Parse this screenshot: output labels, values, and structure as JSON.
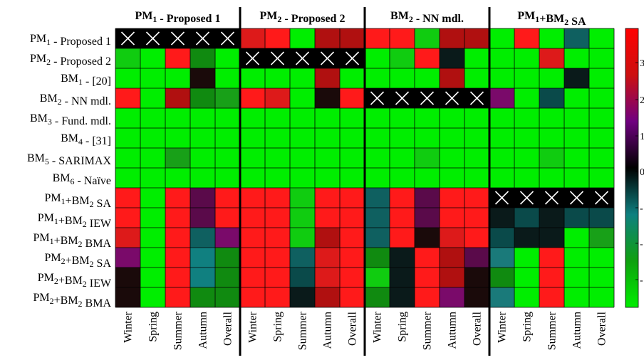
{
  "chart_data": {
    "type": "heatmap",
    "column_groups": [
      {
        "main": "PM",
        "sub": "1",
        "rest": " - Proposed 1"
      },
      {
        "main": "PM",
        "sub": "2",
        "rest": " - Proposed 2"
      },
      {
        "main": "BM",
        "sub": "2",
        "rest": " - NN mdl."
      },
      {
        "parts": [
          {
            "t": "PM",
            "sub": false
          },
          {
            "t": "1",
            "sub": true
          },
          {
            "t": "+BM",
            "sub": false
          },
          {
            "t": "2",
            "sub": true
          },
          {
            "t": " SA",
            "sub": false
          }
        ]
      }
    ],
    "columns": [
      "Winter",
      "Spring",
      "Summer",
      "Autumn",
      "Overall"
    ],
    "rows": [
      {
        "parts": [
          {
            "t": "PM",
            "sub": false
          },
          {
            "t": "1",
            "sub": true
          },
          {
            "t": " - Proposed 1",
            "sub": false
          }
        ]
      },
      {
        "parts": [
          {
            "t": "PM",
            "sub": false
          },
          {
            "t": "2",
            "sub": true
          },
          {
            "t": " - Proposed 2",
            "sub": false
          }
        ]
      },
      {
        "parts": [
          {
            "t": "BM",
            "sub": false
          },
          {
            "t": "1",
            "sub": true
          },
          {
            "t": " - [20]",
            "sub": false
          }
        ]
      },
      {
        "parts": [
          {
            "t": "BM",
            "sub": false
          },
          {
            "t": "2",
            "sub": true
          },
          {
            "t": " - NN mdl.",
            "sub": false
          }
        ]
      },
      {
        "parts": [
          {
            "t": "BM",
            "sub": false
          },
          {
            "t": "3",
            "sub": true
          },
          {
            "t": " - Fund. mdl.",
            "sub": false
          }
        ]
      },
      {
        "parts": [
          {
            "t": "BM",
            "sub": false
          },
          {
            "t": "4",
            "sub": true
          },
          {
            "t": " - [31]",
            "sub": false
          }
        ]
      },
      {
        "parts": [
          {
            "t": "BM",
            "sub": false
          },
          {
            "t": "5",
            "sub": true
          },
          {
            "t": " - SARIMAX",
            "sub": false
          }
        ]
      },
      {
        "parts": [
          {
            "t": "BM",
            "sub": false
          },
          {
            "t": "6",
            "sub": true
          },
          {
            "t": " - Naïve",
            "sub": false
          }
        ]
      },
      {
        "parts": [
          {
            "t": "PM",
            "sub": false
          },
          {
            "t": "1",
            "sub": true
          },
          {
            "t": "+BM",
            "sub": false
          },
          {
            "t": "2",
            "sub": true
          },
          {
            "t": " SA",
            "sub": false
          }
        ]
      },
      {
        "parts": [
          {
            "t": "PM",
            "sub": false
          },
          {
            "t": "1",
            "sub": true
          },
          {
            "t": "+BM",
            "sub": false
          },
          {
            "t": "2",
            "sub": true
          },
          {
            "t": " IEW",
            "sub": false
          }
        ]
      },
      {
        "parts": [
          {
            "t": "PM",
            "sub": false
          },
          {
            "t": "1",
            "sub": true
          },
          {
            "t": "+BM",
            "sub": false
          },
          {
            "t": "2",
            "sub": true
          },
          {
            "t": " BMA",
            "sub": false
          }
        ]
      },
      {
        "parts": [
          {
            "t": "PM",
            "sub": false
          },
          {
            "t": "2",
            "sub": true
          },
          {
            "t": "+BM",
            "sub": false
          },
          {
            "t": "2",
            "sub": true
          },
          {
            "t": " SA",
            "sub": false
          }
        ]
      },
      {
        "parts": [
          {
            "t": "PM",
            "sub": false
          },
          {
            "t": "2",
            "sub": true
          },
          {
            "t": "+BM",
            "sub": false
          },
          {
            "t": "2",
            "sub": true
          },
          {
            "t": " IEW",
            "sub": false
          }
        ]
      },
      {
        "parts": [
          {
            "t": "PM",
            "sub": false
          },
          {
            "t": "2",
            "sub": true
          },
          {
            "t": "+BM",
            "sub": false
          },
          {
            "t": "2",
            "sub": true
          },
          {
            "t": " BMA",
            "sub": false
          }
        ]
      }
    ],
    "crossed_cells_note": "cells drawn black with a white X are excluded (self-comparisons)",
    "colorbar": {
      "visible_ticks": [
        "3",
        "2",
        "1",
        "0",
        "-",
        "-",
        "-"
      ],
      "colors_bottom_to_top": [
        "#00ee00",
        "#0fa00f",
        "#0e8080",
        "#000000",
        "#700080",
        "#cc1010",
        "#ff0000"
      ]
    },
    "palette": {
      "R": "#ff1a1a",
      "r": "#dd1a1a",
      "D": "#b01010",
      "K": "#1a0a0a",
      "k": "#0a1a1a",
      "P": "#5a0a4a",
      "p": "#7a0a6a",
      "G": "#00ee00",
      "g": "#10cc10",
      "H": "#18a018",
      "h": "#108a10",
      "T": "#0f6060",
      "t": "#1a7a7a",
      "C": "#108080",
      "c": "#0a4a4a",
      "X": "#000000"
    },
    "values": [
      [
        "X",
        "X",
        "X",
        "X",
        "X",
        "r",
        "R",
        "G",
        "D",
        "D",
        "R",
        "R",
        "g",
        "D",
        "D",
        "G",
        "R",
        "G",
        "T",
        "G"
      ],
      [
        "g",
        "G",
        "R",
        "h",
        "G",
        "X",
        "X",
        "X",
        "X",
        "X",
        "G",
        "g",
        "R",
        "k",
        "G",
        "G",
        "G",
        "r",
        "G",
        "G"
      ],
      [
        "G",
        "G",
        "G",
        "K",
        "G",
        "G",
        "G",
        "G",
        "D",
        "G",
        "G",
        "G",
        "G",
        "D",
        "G",
        "G",
        "G",
        "G",
        "k",
        "G"
      ],
      [
        "R",
        "G",
        "D",
        "h",
        "H",
        "R",
        "r",
        "G",
        "K",
        "R",
        "X",
        "X",
        "X",
        "X",
        "X",
        "p",
        "G",
        "c",
        "G",
        "G"
      ],
      [
        "G",
        "G",
        "G",
        "G",
        "G",
        "G",
        "G",
        "G",
        "G",
        "G",
        "G",
        "G",
        "G",
        "G",
        "G",
        "G",
        "G",
        "G",
        "G",
        "G"
      ],
      [
        "G",
        "G",
        "G",
        "G",
        "G",
        "G",
        "G",
        "G",
        "G",
        "G",
        "G",
        "G",
        "G",
        "G",
        "G",
        "G",
        "G",
        "G",
        "G",
        "G"
      ],
      [
        "G",
        "G",
        "H",
        "G",
        "G",
        "G",
        "G",
        "G",
        "G",
        "G",
        "G",
        "G",
        "g",
        "G",
        "G",
        "G",
        "G",
        "g",
        "G",
        "G"
      ],
      [
        "G",
        "G",
        "G",
        "G",
        "G",
        "G",
        "G",
        "G",
        "G",
        "G",
        "G",
        "G",
        "G",
        "G",
        "G",
        "G",
        "G",
        "G",
        "G",
        "G"
      ],
      [
        "R",
        "G",
        "R",
        "P",
        "R",
        "R",
        "R",
        "g",
        "R",
        "R",
        "T",
        "R",
        "P",
        "R",
        "R",
        "X",
        "X",
        "X",
        "X",
        "X"
      ],
      [
        "R",
        "G",
        "R",
        "P",
        "R",
        "R",
        "R",
        "g",
        "R",
        "R",
        "T",
        "R",
        "P",
        "R",
        "R",
        "k",
        "c",
        "k",
        "c",
        "c"
      ],
      [
        "r",
        "G",
        "R",
        "T",
        "p",
        "R",
        "R",
        "g",
        "D",
        "R",
        "T",
        "R",
        "K",
        "r",
        "R",
        "c",
        "k",
        "k",
        "G",
        "H"
      ],
      [
        "p",
        "G",
        "R",
        "C",
        "h",
        "R",
        "R",
        "T",
        "r",
        "R",
        "h",
        "k",
        "R",
        "D",
        "P",
        "t",
        "G",
        "R",
        "G",
        "G"
      ],
      [
        "K",
        "G",
        "R",
        "C",
        "h",
        "R",
        "R",
        "c",
        "r",
        "R",
        "g",
        "k",
        "R",
        "D",
        "K",
        "h",
        "G",
        "R",
        "G",
        "G"
      ],
      [
        "K",
        "G",
        "R",
        "h",
        "h",
        "R",
        "R",
        "k",
        "D",
        "R",
        "h",
        "k",
        "R",
        "p",
        "K",
        "t",
        "G",
        "R",
        "G",
        "G"
      ]
    ]
  }
}
